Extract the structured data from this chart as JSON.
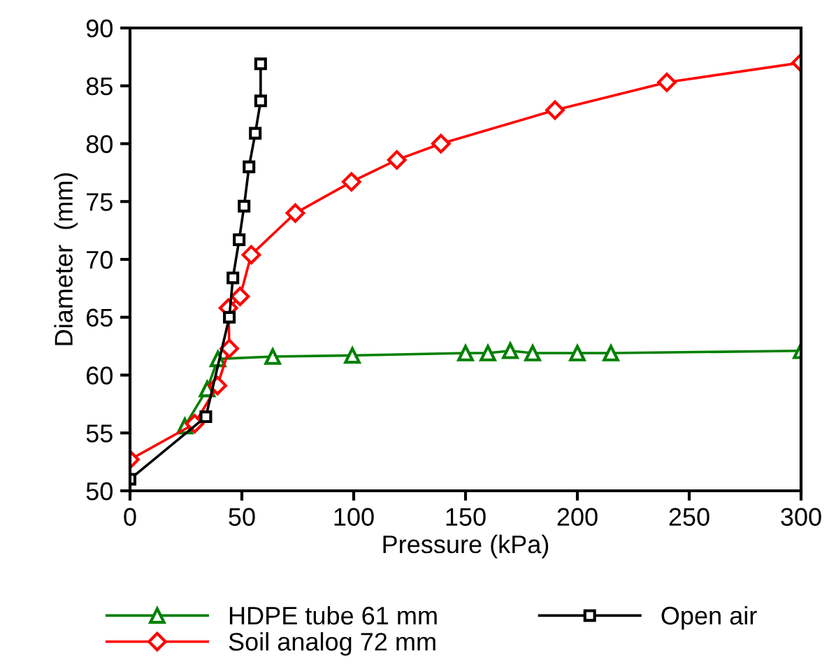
{
  "chart_data": {
    "type": "line",
    "xlabel": "Pressure (kPa)",
    "ylabel": "Diameter  (mm)",
    "xlim": [
      0,
      300
    ],
    "xticks": [
      0,
      50,
      100,
      150,
      200,
      250,
      300
    ],
    "ylim": [
      50,
      90
    ],
    "yticks": [
      50,
      55,
      60,
      65,
      70,
      75,
      80,
      85,
      90
    ],
    "grid": false,
    "legend": "bottom",
    "line_style": "solid",
    "series": [
      {
        "name": "HDPE tube 61 mm",
        "color": "#008000",
        "marker": "triangle",
        "x": [
          24.5,
          34.5,
          39.3,
          63.8,
          99.4,
          150,
          160,
          170,
          180,
          200,
          215,
          300
        ],
        "values": [
          55.6,
          58.8,
          61.4,
          61.6,
          61.7,
          61.9,
          61.9,
          62.1,
          61.9,
          61.9,
          61.9,
          62.1
        ]
      },
      {
        "name": "Soil analog 72 mm",
        "color": "#ff0000",
        "marker": "diamond",
        "x": [
          0,
          28.9,
          39.1,
          44.4,
          44,
          49.2,
          54.2,
          73.9,
          99,
          119.3,
          139,
          190,
          240,
          300
        ],
        "values": [
          52.7,
          55.8,
          59.1,
          62.3,
          65.8,
          66.8,
          70.4,
          74.0,
          76.7,
          78.6,
          80.0,
          82.9,
          85.3,
          87.0
        ]
      },
      {
        "name": "Open air",
        "color": "#000000",
        "marker": "square",
        "x": [
          0,
          33.9,
          44.4,
          46,
          48.8,
          51,
          53.2,
          56,
          58.4,
          58.4
        ],
        "values": [
          51.0,
          56.4,
          65.0,
          68.4,
          71.7,
          74.6,
          78.0,
          80.9,
          83.7,
          86.9
        ]
      }
    ]
  }
}
